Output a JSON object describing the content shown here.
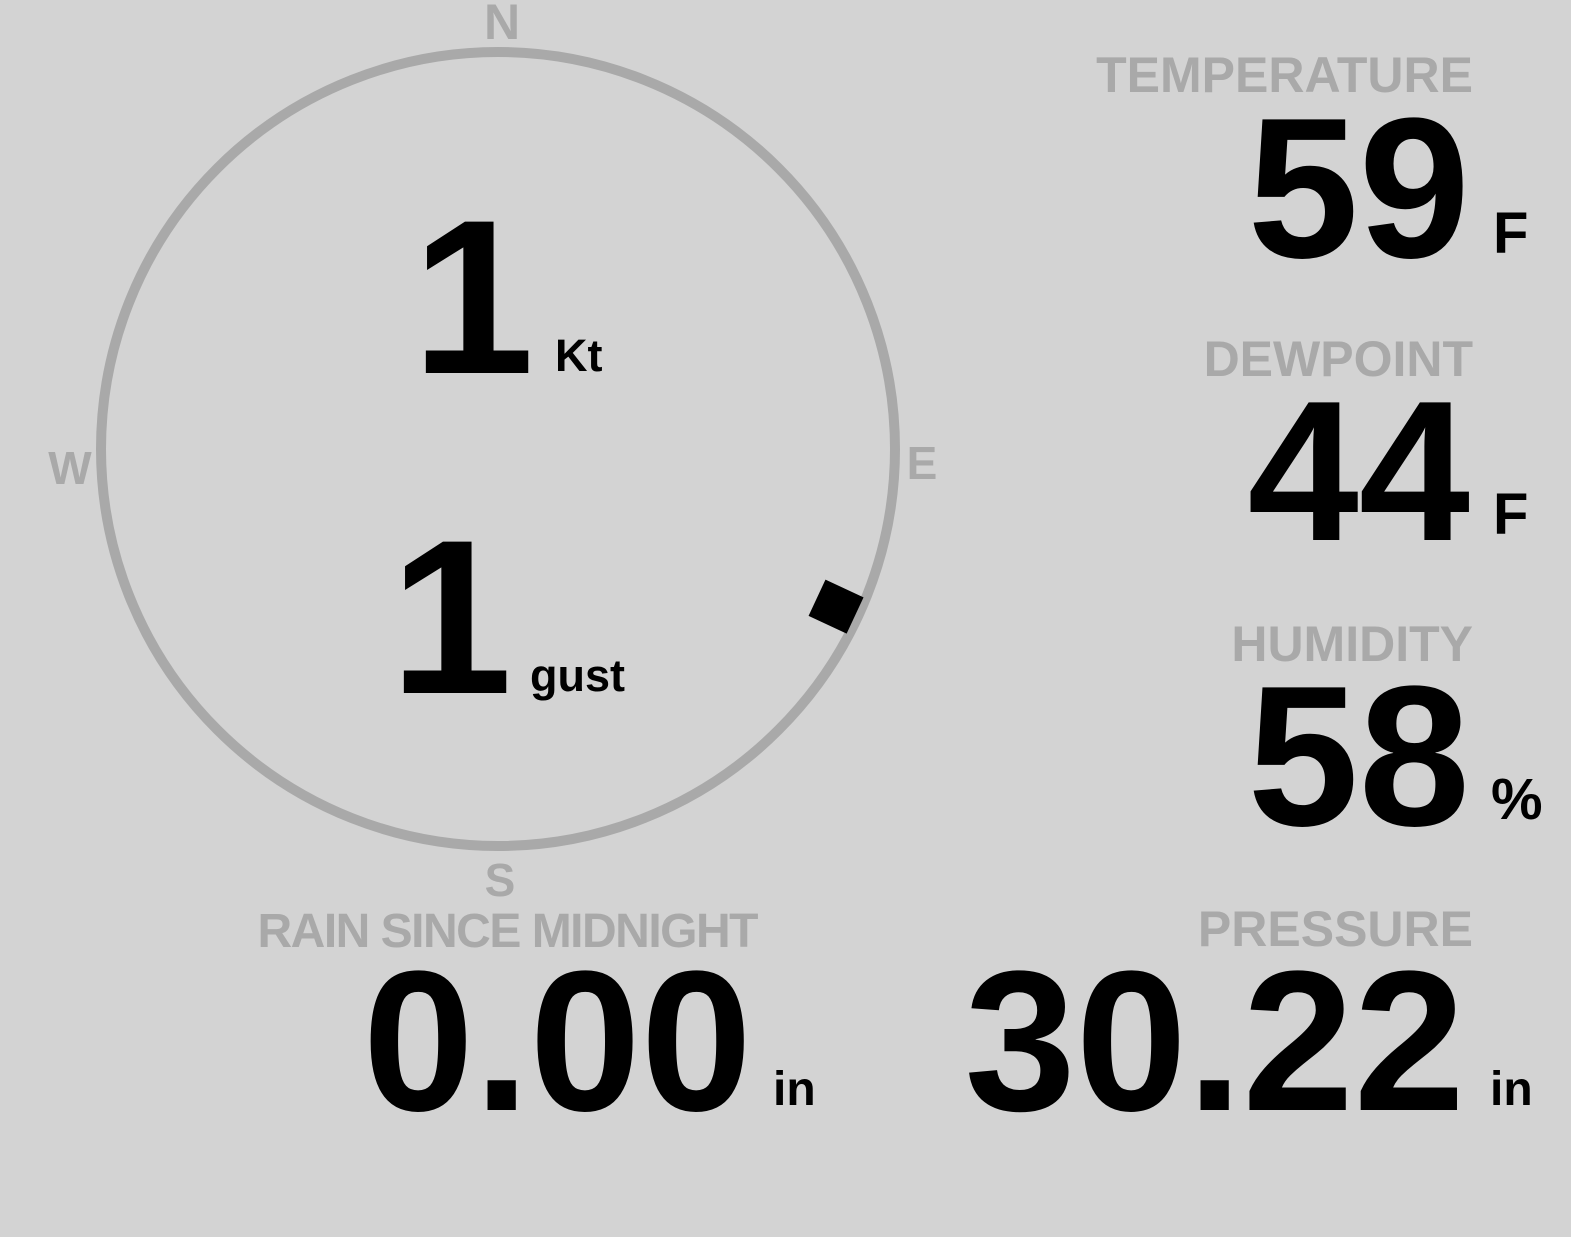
{
  "colors": {
    "background": "#d3d3d3",
    "label": "#a9a9a9",
    "value": "#000000",
    "compass_ring": "#a9a9a9",
    "wind_marker": "#000000"
  },
  "compass": {
    "north": "N",
    "east": "E",
    "south": "S",
    "west": "W",
    "wind_direction_deg": 115
  },
  "wind": {
    "speed": "1",
    "speed_unit": "Kt",
    "gust": "1",
    "gust_unit": "gust"
  },
  "temperature": {
    "label": "TEMPERATURE",
    "value": "59",
    "unit": "F"
  },
  "dewpoint": {
    "label": "DEWPOINT",
    "value": "44",
    "unit": "F"
  },
  "humidity": {
    "label": "HUMIDITY",
    "value": "58",
    "unit": "%"
  },
  "rain": {
    "label": "RAIN SINCE MIDNIGHT",
    "value": "0.00",
    "unit": "in"
  },
  "pressure": {
    "label": "PRESSURE",
    "value": "30.22",
    "unit": "in"
  }
}
